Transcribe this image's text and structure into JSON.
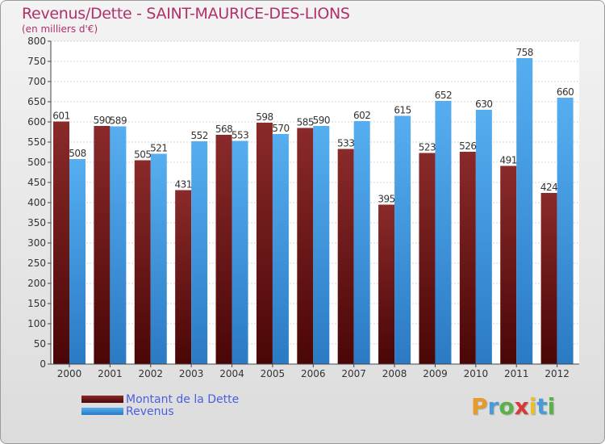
{
  "chart_data": {
    "type": "bar",
    "title": "Revenus/Dette - SAINT-MAURICE-DES-LIONS",
    "subtitle": "(en milliers d'€)",
    "categories": [
      "2000",
      "2001",
      "2002",
      "2003",
      "2004",
      "2005",
      "2006",
      "2007",
      "2008",
      "2009",
      "2010",
      "2011",
      "2012"
    ],
    "series": [
      {
        "name": "Montant de la Dette",
        "color": "#7a1c1c",
        "values": [
          601,
          590,
          505,
          431,
          568,
          598,
          585,
          533,
          395,
          523,
          526,
          491,
          424
        ]
      },
      {
        "name": "Revenus",
        "color": "#3a9ae0",
        "values": [
          508,
          589,
          521,
          552,
          553,
          570,
          590,
          602,
          615,
          652,
          630,
          758,
          660
        ]
      }
    ],
    "ylim": [
      0,
      800
    ],
    "yticks": [
      0,
      50,
      100,
      150,
      200,
      250,
      300,
      350,
      400,
      450,
      500,
      550,
      600,
      650,
      700,
      750,
      800
    ],
    "grid": true,
    "legend_position": "bottom-left"
  },
  "logo": {
    "letters": [
      "P",
      "r",
      "o",
      "x",
      "i",
      "t",
      "i"
    ],
    "colors": [
      "#e89a2a",
      "#4a9ad8",
      "#5ab04a",
      "#d83a3a",
      "#e8c02a",
      "#4a9ad8",
      "#5ab04a"
    ]
  }
}
